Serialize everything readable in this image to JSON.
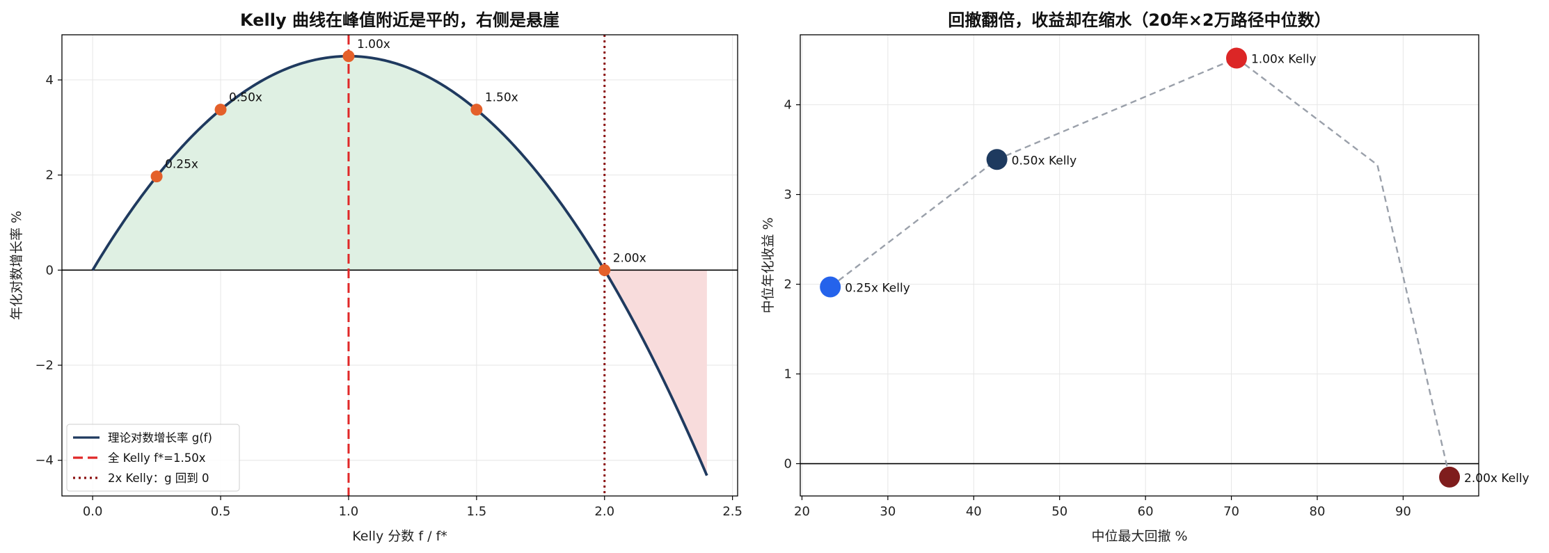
{
  "chart_data": [
    {
      "type": "line",
      "title": "Kelly 曲线在峰值附近是平的，右侧是悬崖",
      "xlabel": "Kelly 分数 f / f*",
      "ylabel": "年化对数增长率 %",
      "xlim": [
        -0.12,
        2.52
      ],
      "ylim": [
        -4.75,
        4.95
      ],
      "xticks": [
        0.0,
        0.5,
        1.0,
        1.5,
        2.0,
        2.5
      ],
      "xtick_labels": [
        "0.0",
        "0.5",
        "1.0",
        "1.5",
        "2.0",
        "2.5"
      ],
      "yticks": [
        -4,
        -2,
        0,
        2,
        4
      ],
      "ytick_labels": [
        "−4",
        "−2",
        "0",
        "2",
        "4"
      ],
      "grid": true,
      "curve": {
        "peak_x": 1.0,
        "peak_y": 4.5,
        "x_range": [
          0.0,
          2.4
        ],
        "color": "#1f3a5f"
      },
      "fill_positive_color": "#dff0e3",
      "fill_negative_color": "#f8dcdc",
      "vlines": [
        {
          "x": 1.0,
          "style": "dashed",
          "color": "#e02828"
        },
        {
          "x": 2.0,
          "style": "dotted",
          "color": "#8b1010"
        }
      ],
      "points": [
        {
          "x": 0.25,
          "y": 1.97,
          "label": "0.25x"
        },
        {
          "x": 0.5,
          "y": 3.375,
          "label": "0.50x"
        },
        {
          "x": 1.0,
          "y": 4.5,
          "label": "1.00x"
        },
        {
          "x": 1.5,
          "y": 3.375,
          "label": "1.50x"
        },
        {
          "x": 2.0,
          "y": 0.0,
          "label": "2.00x"
        }
      ],
      "point_color": "#e4602a",
      "legend": {
        "position": "lower-left",
        "entries": [
          {
            "label": "理论对数增长率 g(f)",
            "style": "solid",
            "color": "#1f3a5f"
          },
          {
            "label": "全 Kelly f*=1.50x",
            "style": "dashed",
            "color": "#e02828"
          },
          {
            "label": "2x Kelly：g 回到 0",
            "style": "dotted",
            "color": "#8b1010"
          }
        ]
      }
    },
    {
      "type": "scatter",
      "title": "回撤翻倍，收益却在缩水（20年×2万路径中位数）",
      "xlabel": "中位最大回撤 %",
      "ylabel": "中位年化收益 %",
      "xlim": [
        19.8,
        98.8
      ],
      "ylim": [
        -0.36,
        4.78
      ],
      "xticks": [
        20,
        30,
        40,
        50,
        60,
        70,
        80,
        90
      ],
      "xtick_labels": [
        "20",
        "30",
        "40",
        "50",
        "60",
        "70",
        "80",
        "90"
      ],
      "yticks": [
        0,
        1,
        2,
        3,
        4
      ],
      "ytick_labels": [
        "0",
        "1",
        "2",
        "3",
        "4"
      ],
      "grid": true,
      "connector_path": [
        {
          "x": 23.3,
          "y": 1.97
        },
        {
          "x": 42.7,
          "y": 3.39
        },
        {
          "x": 70.6,
          "y": 4.52
        },
        {
          "x": 87.0,
          "y": 3.33
        },
        {
          "x": 95.4,
          "y": -0.15
        }
      ],
      "points": [
        {
          "x": 23.3,
          "y": 1.97,
          "label": "0.25x Kelly",
          "color": "#2563eb"
        },
        {
          "x": 42.7,
          "y": 3.39,
          "label": "0.50x Kelly",
          "color": "#1e3a5f"
        },
        {
          "x": 70.6,
          "y": 4.52,
          "label": "1.00x Kelly",
          "color": "#dc2626"
        },
        {
          "x": 95.4,
          "y": -0.15,
          "label": "2.00x Kelly",
          "color": "#7f1d1d"
        }
      ]
    }
  ]
}
